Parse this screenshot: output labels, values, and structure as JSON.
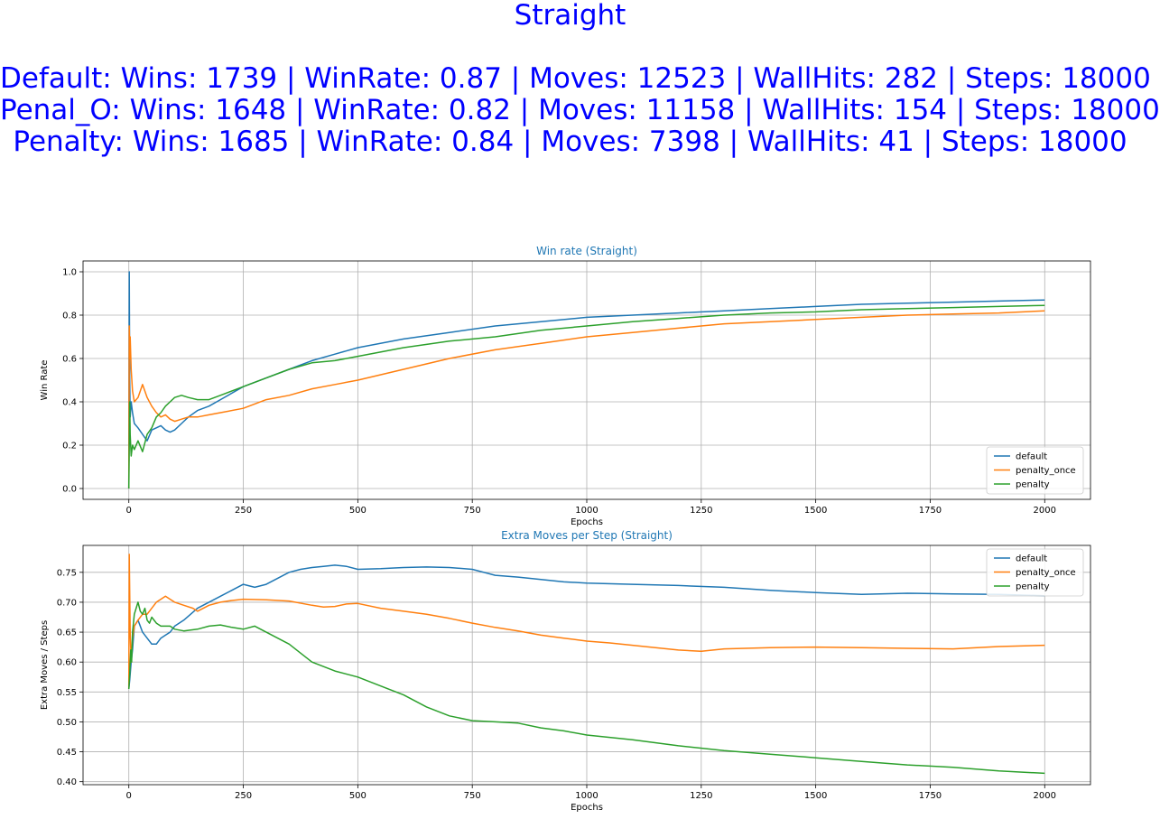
{
  "figure": {
    "title": "Straight",
    "lines": [
      "Default: Wins: 1739 | WinRate: 0.87 | Moves: 12523 | WallHits: 282 | Steps: 18000",
      "Penal_O: Wins: 1648 | WinRate: 0.82 | Moves: 11158 | WallHits: 154 | Steps: 18000",
      "Penalty: Wins: 1685 | WinRate: 0.84 | Moves: 7398 | WallHits: 41 | Steps: 18000"
    ],
    "title_color": "#0000ff"
  },
  "chart_data": [
    {
      "type": "line",
      "title": "Win rate (Straight)",
      "xlabel": "Epochs",
      "ylabel": "Win Rate",
      "xlim": [
        -100,
        2100
      ],
      "ylim": [
        -0.05,
        1.05
      ],
      "xticks": [
        0,
        250,
        500,
        750,
        1000,
        1250,
        1500,
        1750,
        2000
      ],
      "yticks": [
        0.0,
        0.2,
        0.4,
        0.6,
        0.8,
        1.0
      ],
      "ytick_labels": [
        "0.0",
        "0.2",
        "0.4",
        "0.6",
        "0.8",
        "1.0"
      ],
      "grid": true,
      "legend": "lower-right",
      "series": [
        {
          "name": "default",
          "color": "#1f77b4",
          "x": [
            0,
            1,
            2,
            3,
            5,
            8,
            12,
            20,
            30,
            40,
            50,
            60,
            70,
            80,
            90,
            100,
            115,
            130,
            150,
            175,
            200,
            250,
            300,
            350,
            400,
            450,
            500,
            600,
            700,
            800,
            900,
            1000,
            1100,
            1200,
            1300,
            1400,
            1500,
            1600,
            1700,
            1800,
            1900,
            2000
          ],
          "y": [
            0.0,
            1.0,
            0.5,
            0.33,
            0.4,
            0.35,
            0.3,
            0.28,
            0.25,
            0.22,
            0.27,
            0.28,
            0.29,
            0.27,
            0.26,
            0.27,
            0.3,
            0.33,
            0.36,
            0.38,
            0.41,
            0.47,
            0.51,
            0.55,
            0.59,
            0.62,
            0.65,
            0.69,
            0.72,
            0.75,
            0.77,
            0.79,
            0.8,
            0.81,
            0.82,
            0.83,
            0.84,
            0.85,
            0.855,
            0.86,
            0.865,
            0.87
          ]
        },
        {
          "name": "penalty_once",
          "color": "#ff7f0e",
          "x": [
            0,
            1,
            2,
            3,
            5,
            8,
            12,
            20,
            30,
            40,
            50,
            60,
            70,
            80,
            90,
            100,
            115,
            130,
            150,
            175,
            200,
            250,
            300,
            350,
            400,
            450,
            500,
            600,
            700,
            800,
            900,
            1000,
            1100,
            1200,
            1300,
            1400,
            1500,
            1600,
            1700,
            1800,
            1900,
            2000
          ],
          "y": [
            0.0,
            0.75,
            0.6,
            0.7,
            0.55,
            0.45,
            0.4,
            0.42,
            0.48,
            0.42,
            0.38,
            0.35,
            0.33,
            0.34,
            0.32,
            0.31,
            0.32,
            0.33,
            0.33,
            0.34,
            0.35,
            0.37,
            0.41,
            0.43,
            0.46,
            0.48,
            0.5,
            0.55,
            0.6,
            0.64,
            0.67,
            0.7,
            0.72,
            0.74,
            0.76,
            0.77,
            0.78,
            0.79,
            0.8,
            0.805,
            0.81,
            0.82
          ]
        },
        {
          "name": "penalty",
          "color": "#2ca02c",
          "x": [
            0,
            1,
            2,
            3,
            5,
            8,
            12,
            20,
            30,
            40,
            50,
            60,
            70,
            80,
            90,
            100,
            115,
            130,
            150,
            175,
            200,
            250,
            300,
            350,
            400,
            450,
            500,
            600,
            700,
            800,
            900,
            1000,
            1100,
            1200,
            1300,
            1400,
            1500,
            1600,
            1700,
            1800,
            1900,
            2000
          ],
          "y": [
            0.0,
            0.2,
            0.4,
            0.25,
            0.15,
            0.2,
            0.18,
            0.22,
            0.17,
            0.25,
            0.28,
            0.33,
            0.35,
            0.38,
            0.4,
            0.42,
            0.43,
            0.42,
            0.41,
            0.41,
            0.43,
            0.47,
            0.51,
            0.55,
            0.58,
            0.59,
            0.61,
            0.65,
            0.68,
            0.7,
            0.73,
            0.75,
            0.77,
            0.785,
            0.8,
            0.81,
            0.815,
            0.825,
            0.83,
            0.835,
            0.84,
            0.845
          ]
        }
      ]
    },
    {
      "type": "line",
      "title": "Extra Moves per Step (Straight)",
      "xlabel": "Epochs",
      "ylabel": "Extra Moves / Steps",
      "xlim": [
        -100,
        2100
      ],
      "ylim": [
        0.395,
        0.795
      ],
      "xticks": [
        0,
        250,
        500,
        750,
        1000,
        1250,
        1500,
        1750,
        2000
      ],
      "yticks": [
        0.4,
        0.45,
        0.5,
        0.55,
        0.6,
        0.65,
        0.7,
        0.75
      ],
      "ytick_labels": [
        "0.40",
        "0.45",
        "0.50",
        "0.55",
        "0.60",
        "0.65",
        "0.70",
        "0.75"
      ],
      "grid": true,
      "legend": "upper-right",
      "series": [
        {
          "name": "default",
          "color": "#1f77b4",
          "x": [
            0,
            2,
            5,
            8,
            12,
            20,
            30,
            40,
            50,
            60,
            70,
            80,
            90,
            100,
            120,
            150,
            175,
            200,
            225,
            250,
            275,
            300,
            325,
            350,
            375,
            400,
            425,
            450,
            475,
            500,
            550,
            600,
            650,
            700,
            750,
            800,
            850,
            900,
            950,
            1000,
            1100,
            1200,
            1300,
            1400,
            1500,
            1600,
            1700,
            1800,
            1900,
            2000
          ],
          "y": [
            0.555,
            0.57,
            0.6,
            0.62,
            0.66,
            0.67,
            0.65,
            0.64,
            0.63,
            0.63,
            0.64,
            0.645,
            0.65,
            0.66,
            0.67,
            0.69,
            0.7,
            0.71,
            0.72,
            0.73,
            0.725,
            0.73,
            0.74,
            0.75,
            0.755,
            0.758,
            0.76,
            0.762,
            0.76,
            0.755,
            0.756,
            0.758,
            0.759,
            0.758,
            0.755,
            0.745,
            0.742,
            0.738,
            0.734,
            0.732,
            0.73,
            0.728,
            0.725,
            0.72,
            0.716,
            0.713,
            0.715,
            0.714,
            0.713,
            0.711
          ]
        },
        {
          "name": "penalty_once",
          "color": "#ff7f0e",
          "x": [
            0,
            1,
            3,
            5,
            8,
            12,
            20,
            30,
            40,
            50,
            60,
            70,
            80,
            90,
            100,
            120,
            140,
            150,
            175,
            200,
            225,
            250,
            300,
            350,
            400,
            425,
            450,
            475,
            500,
            550,
            600,
            650,
            700,
            750,
            800,
            850,
            900,
            950,
            1000,
            1050,
            1100,
            1150,
            1200,
            1250,
            1300,
            1400,
            1500,
            1600,
            1700,
            1800,
            1900,
            2000
          ],
          "y": [
            0.555,
            0.78,
            0.65,
            0.6,
            0.64,
            0.66,
            0.67,
            0.68,
            0.68,
            0.69,
            0.7,
            0.705,
            0.71,
            0.705,
            0.7,
            0.695,
            0.69,
            0.685,
            0.695,
            0.7,
            0.703,
            0.705,
            0.704,
            0.702,
            0.695,
            0.692,
            0.693,
            0.697,
            0.698,
            0.69,
            0.685,
            0.68,
            0.673,
            0.665,
            0.658,
            0.652,
            0.645,
            0.64,
            0.635,
            0.632,
            0.628,
            0.624,
            0.62,
            0.618,
            0.622,
            0.624,
            0.625,
            0.624,
            0.623,
            0.622,
            0.626,
            0.628
          ]
        },
        {
          "name": "penalty",
          "color": "#2ca02c",
          "x": [
            0,
            2,
            4,
            6,
            8,
            12,
            16,
            20,
            25,
            30,
            35,
            40,
            45,
            50,
            60,
            70,
            80,
            90,
            100,
            120,
            150,
            175,
            200,
            225,
            250,
            275,
            300,
            325,
            350,
            375,
            400,
            450,
            500,
            550,
            600,
            650,
            700,
            750,
            800,
            850,
            900,
            950,
            1000,
            1100,
            1200,
            1300,
            1400,
            1500,
            1600,
            1700,
            1800,
            1900,
            2000
          ],
          "y": [
            0.555,
            0.58,
            0.62,
            0.6,
            0.65,
            0.68,
            0.69,
            0.7,
            0.685,
            0.68,
            0.69,
            0.67,
            0.665,
            0.675,
            0.665,
            0.66,
            0.66,
            0.66,
            0.655,
            0.652,
            0.655,
            0.66,
            0.662,
            0.658,
            0.655,
            0.66,
            0.65,
            0.64,
            0.63,
            0.615,
            0.6,
            0.585,
            0.575,
            0.56,
            0.545,
            0.525,
            0.51,
            0.502,
            0.5,
            0.498,
            0.49,
            0.485,
            0.478,
            0.47,
            0.46,
            0.452,
            0.446,
            0.44,
            0.434,
            0.428,
            0.424,
            0.418,
            0.414
          ]
        }
      ]
    }
  ]
}
